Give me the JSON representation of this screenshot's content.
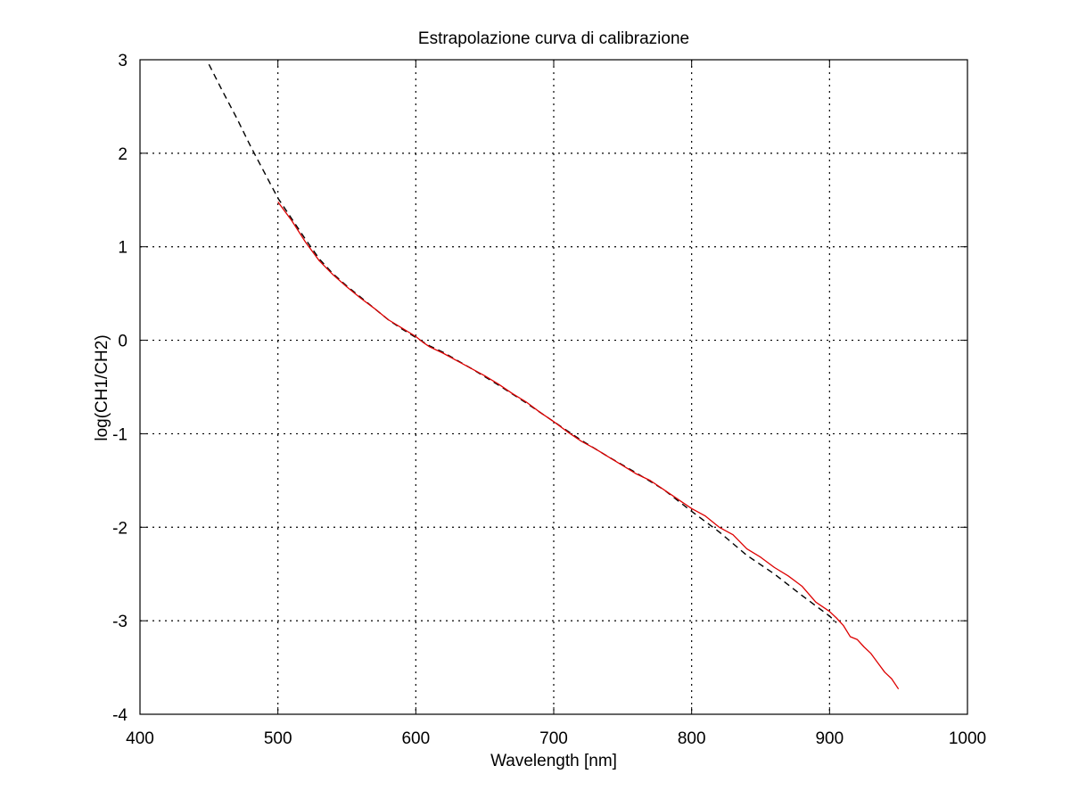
{
  "chart_data": {
    "type": "line",
    "title": "Estrapolazione curva di calibrazione",
    "xlabel": "Wavelength [nm]",
    "ylabel": "log(CH1/CH2)",
    "xlim": [
      400,
      1000
    ],
    "ylim": [
      -4,
      3
    ],
    "x_ticks": [
      400,
      500,
      600,
      700,
      800,
      900,
      1000
    ],
    "y_ticks": [
      -4,
      -3,
      -2,
      -1,
      0,
      1,
      2,
      3
    ],
    "x_tick_labels": [
      "400",
      "500",
      "600",
      "700",
      "800",
      "900",
      "1000"
    ],
    "y_tick_labels": [
      "-4",
      "-3",
      "-2",
      "-1",
      "0",
      "1",
      "2",
      "3"
    ],
    "grid": true,
    "grid_style": "dotted",
    "legend": "none",
    "series": [
      {
        "style": "dashed",
        "color": "#000000",
        "x": [
          450,
          460,
          470,
          480,
          490,
          500,
          510,
          520,
          530,
          540,
          550,
          560,
          570,
          580,
          590,
          600,
          610,
          620,
          640,
          660,
          680,
          700,
          720,
          740,
          760,
          780,
          800,
          820,
          840,
          860,
          880,
          900,
          905
        ],
        "y": [
          2.95,
          2.66,
          2.38,
          2.08,
          1.8,
          1.52,
          1.3,
          1.08,
          0.87,
          0.71,
          0.58,
          0.46,
          0.34,
          0.22,
          0.12,
          0.03,
          -0.06,
          -0.13,
          -0.3,
          -0.48,
          -0.67,
          -0.87,
          -1.07,
          -1.25,
          -1.42,
          -1.6,
          -1.83,
          -2.05,
          -2.3,
          -2.5,
          -2.73,
          -2.95,
          -3.02
        ]
      },
      {
        "style": "solid",
        "color": "#dd0000",
        "x": [
          500,
          505,
          510,
          520,
          530,
          540,
          550,
          560,
          570,
          580,
          590,
          600,
          605,
          610,
          620,
          630,
          640,
          650,
          660,
          670,
          680,
          690,
          700,
          710,
          720,
          730,
          740,
          750,
          760,
          770,
          780,
          790,
          800,
          810,
          820,
          830,
          840,
          850,
          860,
          870,
          880,
          890,
          900,
          905,
          910,
          915,
          920,
          925,
          930,
          935,
          940,
          945,
          950
        ],
        "y": [
          1.48,
          1.38,
          1.28,
          1.05,
          0.85,
          0.7,
          0.57,
          0.45,
          0.34,
          0.22,
          0.13,
          0.04,
          -0.02,
          -0.07,
          -0.14,
          -0.22,
          -0.3,
          -0.38,
          -0.47,
          -0.57,
          -0.66,
          -0.77,
          -0.87,
          -0.98,
          -1.08,
          -1.16,
          -1.25,
          -1.34,
          -1.43,
          -1.5,
          -1.6,
          -1.7,
          -1.8,
          -1.88,
          -2.0,
          -2.08,
          -2.23,
          -2.32,
          -2.43,
          -2.52,
          -2.63,
          -2.8,
          -2.9,
          -2.97,
          -3.05,
          -3.17,
          -3.2,
          -3.28,
          -3.35,
          -3.45,
          -3.55,
          -3.62,
          -3.73
        ]
      }
    ]
  }
}
